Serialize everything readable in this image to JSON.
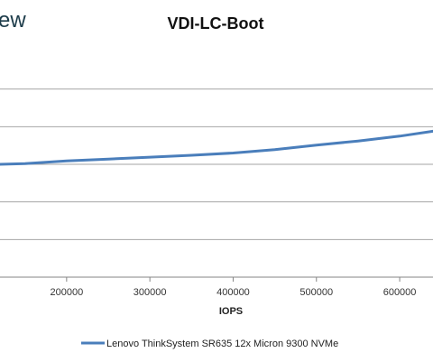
{
  "brand_fragment": "ew",
  "chart_data": {
    "type": "line",
    "title": "VDI-LC-Boot",
    "xlabel": "IOPS",
    "ylabel": "",
    "xlim": [
      120000,
      640000
    ],
    "ylim": [
      0,
      6
    ],
    "x_ticks": [
      200000,
      300000,
      400000,
      500000,
      600000
    ],
    "x_tick_labels": [
      "200000",
      "300000",
      "400000",
      "500000",
      "600000"
    ],
    "grid": true,
    "legend_position": "bottom",
    "series": [
      {
        "name": "Lenovo ThinkSystem SR635 12x Micron 9300 NVMe",
        "color": "#4a7ebb",
        "x": [
          120000,
          150000,
          200000,
          250000,
          300000,
          350000,
          400000,
          450000,
          500000,
          550000,
          600000,
          640000
        ],
        "y": [
          3.0,
          3.02,
          3.09,
          3.14,
          3.19,
          3.24,
          3.3,
          3.39,
          3.51,
          3.62,
          3.75,
          3.88
        ]
      }
    ]
  }
}
